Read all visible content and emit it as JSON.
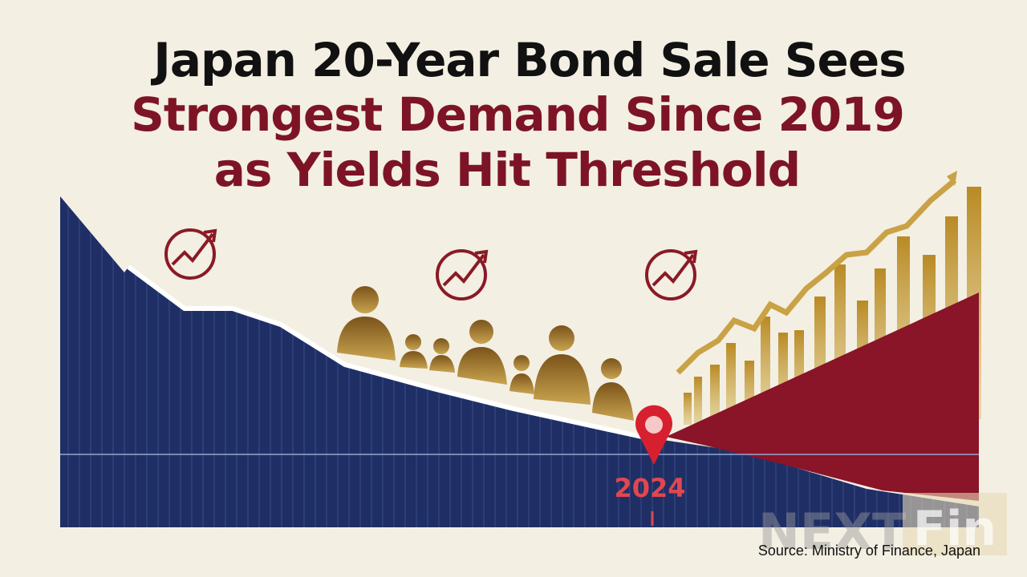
{
  "header": {
    "title_lines": [
      "Japan 20-Year Bond Sale Sees",
      "Strongest Demand Since 2019",
      "as Yields Hit Threshold"
    ]
  },
  "marker": {
    "label": "2024"
  },
  "watermark": {
    "left": "NEXT",
    "right": "Fin"
  },
  "footer": {
    "source": "Source: Ministry of Finance, Japan"
  }
}
